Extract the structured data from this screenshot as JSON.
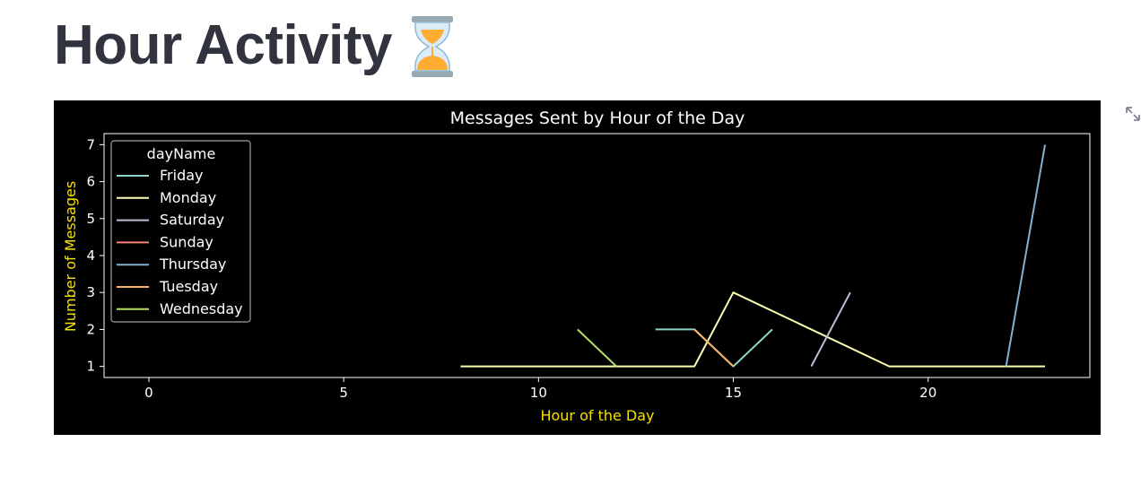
{
  "page": {
    "title": "Hour Activity",
    "title_icon": "hourglass-icon",
    "text_color": "#31333f"
  },
  "toolbar": {
    "expand_icon": "fullscreen-expand-icon"
  },
  "chart_data": {
    "type": "line",
    "title": "Messages Sent by Hour of the Day",
    "xlabel": "Hour of the Day",
    "ylabel": "Number of Messages",
    "xlim": [
      -1.15,
      24.15
    ],
    "ylim": [
      0.7,
      7.3
    ],
    "xticks": [
      0,
      5,
      10,
      15,
      20
    ],
    "yticks": [
      1,
      2,
      3,
      4,
      5,
      6,
      7
    ],
    "grid": false,
    "background": "#000000",
    "axis_label_color": "#f5e100",
    "legend": {
      "title": "dayName",
      "placement": "upper-left"
    },
    "series": [
      {
        "name": "Friday",
        "color": "#8dd3c7",
        "x": [
          13,
          14,
          15,
          16
        ],
        "y": [
          2,
          2,
          1,
          2
        ]
      },
      {
        "name": "Monday",
        "color": "#feffb3",
        "x": [
          8,
          9,
          13,
          14,
          15,
          19,
          20,
          21,
          22,
          23
        ],
        "y": [
          1,
          1,
          1,
          1,
          3,
          1,
          1,
          1,
          1,
          1
        ]
      },
      {
        "name": "Saturday",
        "color": "#bfbbd9",
        "x": [
          17,
          18
        ],
        "y": [
          1,
          3
        ]
      },
      {
        "name": "Sunday",
        "color": "#fa8174",
        "x": [],
        "y": []
      },
      {
        "name": "Thursday",
        "color": "#81b1d2",
        "x": [
          22,
          23
        ],
        "y": [
          1,
          7
        ]
      },
      {
        "name": "Tuesday",
        "color": "#fdb462",
        "x": [
          14,
          15
        ],
        "y": [
          2,
          1
        ]
      },
      {
        "name": "Wednesday",
        "color": "#b3de69",
        "x": [
          11,
          12
        ],
        "y": [
          2,
          1
        ]
      }
    ]
  }
}
